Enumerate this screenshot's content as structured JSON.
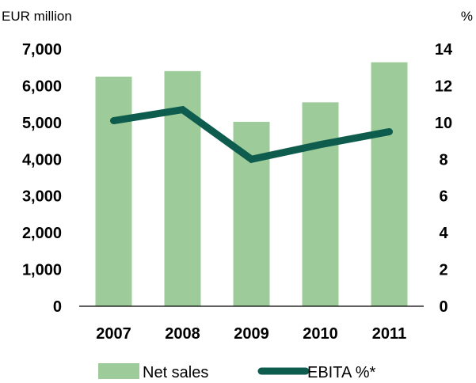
{
  "chart_data": {
    "type": "bar",
    "categories": [
      "2007",
      "2008",
      "2009",
      "2010",
      "2011"
    ],
    "series": [
      {
        "name": "Net sales",
        "type": "bar",
        "axis": "left",
        "color": "#9dcc9a",
        "values": [
          6250,
          6400,
          5020,
          5550,
          6640
        ]
      },
      {
        "name": "EBITA %*",
        "type": "line",
        "axis": "right",
        "color": "#0e5c4e",
        "values": [
          10.1,
          10.7,
          8.0,
          8.8,
          9.5
        ]
      }
    ],
    "left_axis": {
      "label": "EUR million",
      "min": 0,
      "max": 7000,
      "step": 1000,
      "ticks": [
        "0",
        "1,000",
        "2,000",
        "3,000",
        "4,000",
        "5,000",
        "6,000",
        "7,000"
      ]
    },
    "right_axis": {
      "label": "%",
      "min": 0,
      "max": 14,
      "step": 2,
      "ticks": [
        "0",
        "2",
        "4",
        "6",
        "8",
        "10",
        "12",
        "14"
      ]
    },
    "grid": false,
    "legend_position": "bottom"
  }
}
